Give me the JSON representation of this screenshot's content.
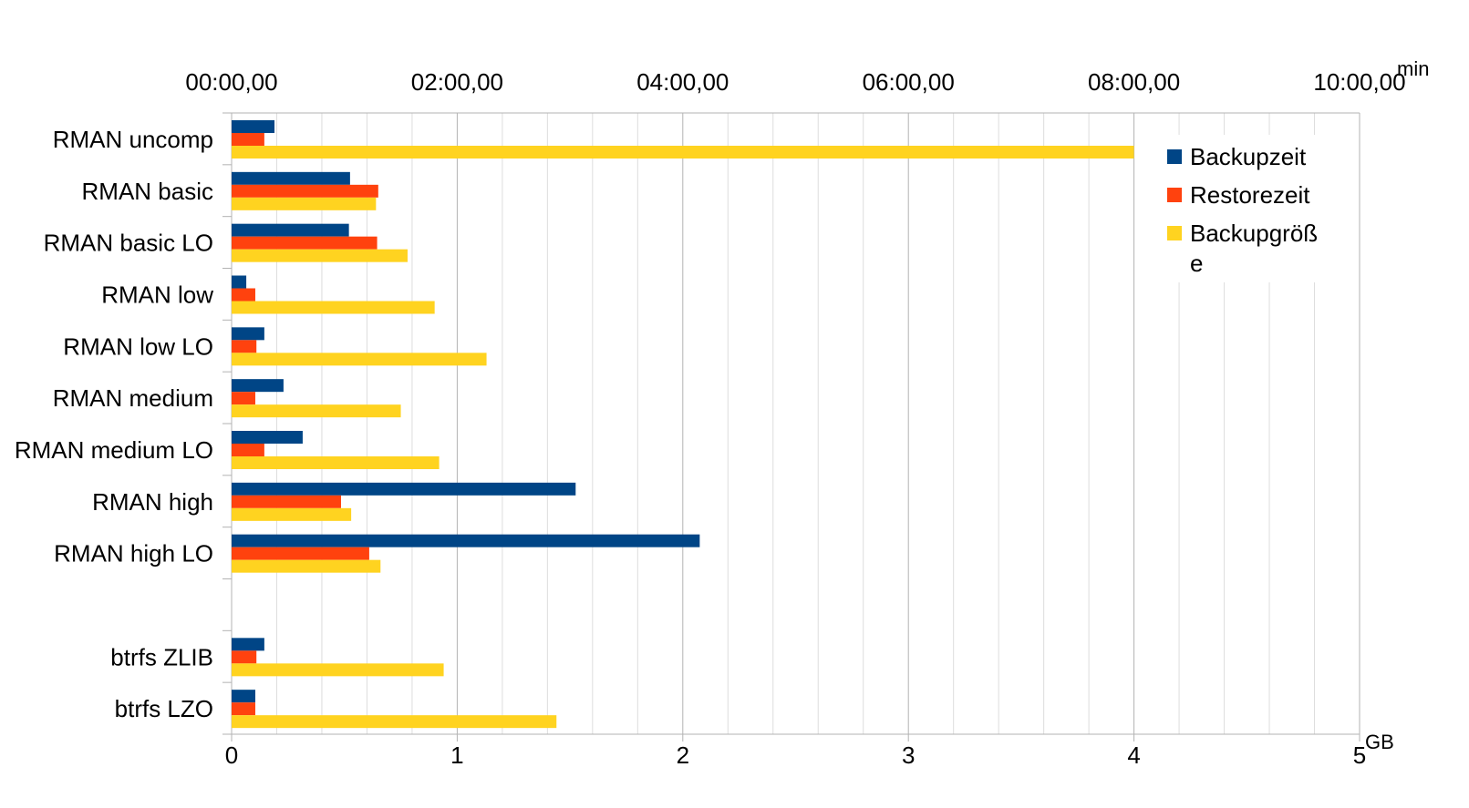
{
  "chart_data": {
    "type": "bar",
    "orientation": "horizontal",
    "categories": [
      "RMAN uncomp",
      "RMAN basic",
      "RMAN basic LO",
      "RMAN low",
      "RMAN low LO",
      "RMAN medium",
      "RMAN medium LO",
      "RMAN high",
      "RMAN high LO",
      "",
      "btrfs ZLIB",
      "btrfs LZO"
    ],
    "series": [
      {
        "name": "Backupzeit",
        "axis": "top",
        "unit": "min",
        "color": "#004586",
        "values": [
          0.38,
          1.05,
          1.04,
          0.13,
          0.29,
          0.46,
          0.63,
          3.05,
          4.15,
          null,
          0.29,
          0.21
        ]
      },
      {
        "name": "Restorezeit",
        "axis": "top",
        "unit": "min",
        "color": "#ff420e",
        "values": [
          0.29,
          1.3,
          1.29,
          0.21,
          0.22,
          0.21,
          0.29,
          0.97,
          1.22,
          null,
          0.22,
          0.21
        ]
      },
      {
        "name": "Backupgröße",
        "axis": "bottom",
        "unit": "GB",
        "color": "#ffd320",
        "values": [
          4.0,
          0.64,
          0.78,
          0.9,
          1.13,
          0.75,
          0.92,
          0.53,
          0.66,
          null,
          0.94,
          1.44
        ]
      }
    ],
    "x_bottom": {
      "label": "GB",
      "ticks": [
        "0",
        "1",
        "2",
        "3",
        "4",
        "5"
      ],
      "range": [
        0,
        5
      ]
    },
    "x_top": {
      "label": "min",
      "ticks": [
        "00:00,00",
        "02:00,00",
        "04:00,00",
        "06:00,00",
        "08:00,00",
        "10:00,00"
      ],
      "range_minutes": [
        0,
        10
      ]
    },
    "legend": {
      "entries": [
        "Backupzeit",
        "Restorezeit",
        "Backupgröß",
        "e"
      ],
      "position": "top-right"
    },
    "grid": true
  }
}
